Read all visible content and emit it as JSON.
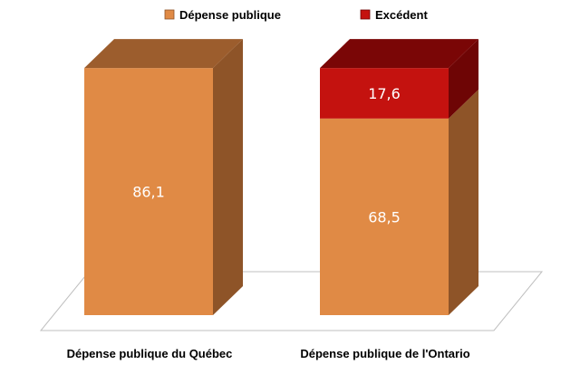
{
  "chart_data": {
    "type": "bar",
    "stacked": true,
    "three_d": true,
    "categories": [
      "Dépense publique du Québec",
      "Dépense publique de l'Ontario"
    ],
    "series": [
      {
        "name": "Dépense publique",
        "values": [
          86.1,
          68.5
        ],
        "labels": [
          "86,1",
          "68,5"
        ],
        "color": "#e08a45",
        "side_color": "#8e5428",
        "top_color": "#9c5d2d"
      },
      {
        "name": "Excédent",
        "values": [
          0,
          17.6
        ],
        "labels": [
          "",
          "17,6"
        ],
        "color": "#c4120f",
        "side_color": "#6e0505",
        "top_color": "#7a0606"
      }
    ],
    "legend_position": "top",
    "grid": false
  }
}
